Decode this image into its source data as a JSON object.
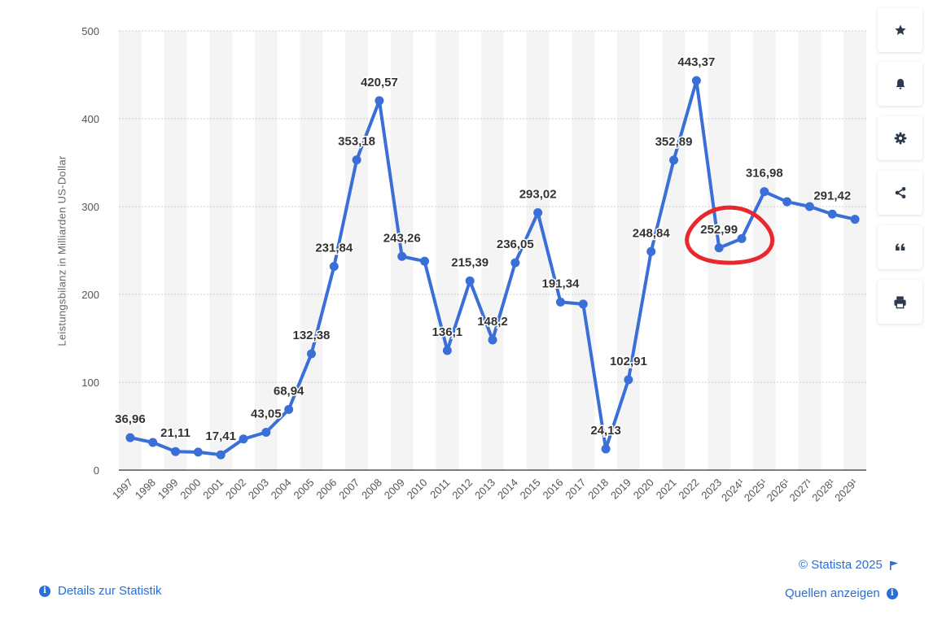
{
  "chart_data": {
    "type": "line",
    "ylabel": "Leistungsbilanz in Milliarden US-Dollar",
    "ylim": [
      0,
      500
    ],
    "yticks": [
      "0",
      "100",
      "200",
      "300",
      "400",
      "500"
    ],
    "grid": true,
    "categories": [
      "1997",
      "1998",
      "1999",
      "2000",
      "2001",
      "2002",
      "2003",
      "2004",
      "2005",
      "2006",
      "2007",
      "2008",
      "2009",
      "2010",
      "2011",
      "2012",
      "2013",
      "2014",
      "2015",
      "2016",
      "2017",
      "2018",
      "2019",
      "2020",
      "2021",
      "2022",
      "2023",
      "2024¹",
      "2025¹",
      "2026¹",
      "2027¹",
      "2028¹",
      "2029¹"
    ],
    "values": [
      36.96,
      31.5,
      21.11,
      20.5,
      17.41,
      35.4,
      43.05,
      68.94,
      132.38,
      231.84,
      353.18,
      420.57,
      243.26,
      237.8,
      136.1,
      215.39,
      148.2,
      236.05,
      293.02,
      191.34,
      189.0,
      24.13,
      102.91,
      248.84,
      352.89,
      443.37,
      252.99,
      263.5,
      316.98,
      305.5,
      300.0,
      291.42,
      285.5
    ],
    "data_labels": [
      "36,96",
      "",
      "21,11",
      "",
      "17,41",
      "",
      "43,05",
      "68,94",
      "132,38",
      "231,84",
      "353,18",
      "420,57",
      "243,26",
      "",
      "136,1",
      "215,39",
      "148,2",
      "236,05",
      "293,02",
      "191,34",
      "",
      "24,13",
      "102,91",
      "248,84",
      "352,89",
      "443,37",
      "252,99",
      "",
      "316,98",
      "",
      "",
      "291,42",
      ""
    ],
    "line_color": "#3a6fd8",
    "highlight": {
      "index": 26,
      "color": "#e8282e"
    }
  },
  "toolbar": [
    {
      "name": "star-icon"
    },
    {
      "name": "bell-icon"
    },
    {
      "name": "gear-icon"
    },
    {
      "name": "share-icon"
    },
    {
      "name": "quote-icon"
    },
    {
      "name": "print-icon"
    }
  ],
  "footer": {
    "copyright": "© Statista 2025",
    "sources": "Quellen anzeigen",
    "details": "Details zur Statistik"
  }
}
